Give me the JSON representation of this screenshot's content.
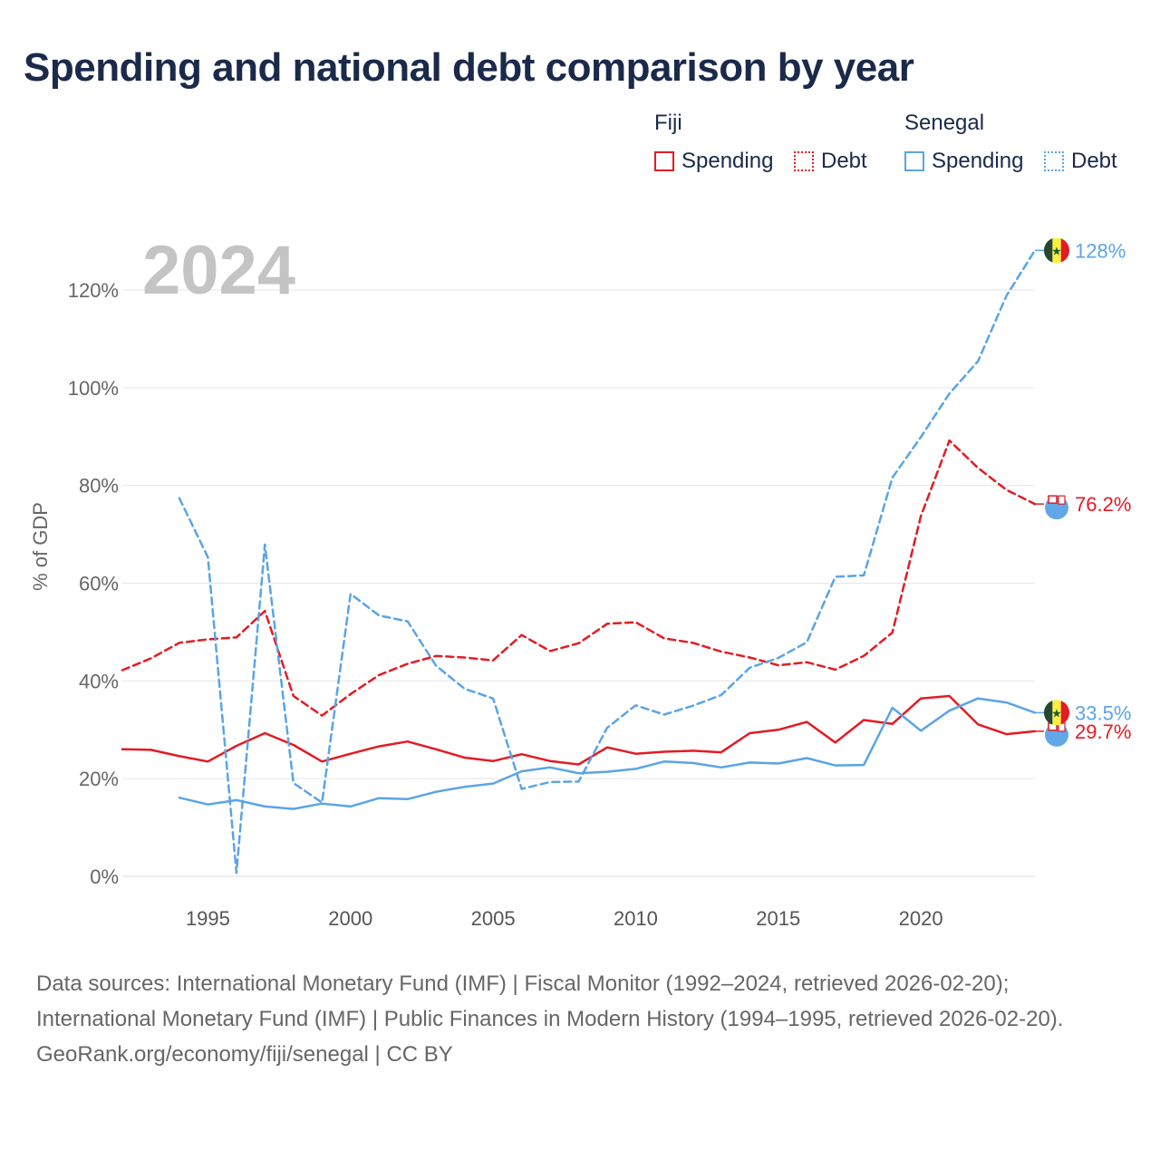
{
  "title": "Spending and national debt comparison by year",
  "legend": {
    "groups": [
      {
        "country": "Fiji",
        "spending_label": "Spending",
        "debt_label": "Debt",
        "color": "#e31b23"
      },
      {
        "country": "Senegal",
        "spending_label": "Spending",
        "debt_label": "Debt",
        "color": "#5aa4e6"
      }
    ]
  },
  "footer": {
    "sources": "Data sources: International Monetary Fund (IMF) | Fiscal Monitor (1992–2024, retrieved 2026-02-20); International Monetary Fund (IMF) | Public Finances in Modern History (1994–1995, retrieved 2026-02-20).",
    "credit": "GeoRank.org/economy/fiji/senegal | CC BY"
  },
  "chart_data": {
    "type": "line",
    "title": "Spending and national debt comparison by year",
    "year_watermark": "2024",
    "ylabel": "% of GDP",
    "xlabel": "",
    "xlim": [
      1992,
      2024
    ],
    "ylim": [
      0,
      130
    ],
    "x_ticks": [
      1995,
      2000,
      2005,
      2010,
      2015,
      2020
    ],
    "y_ticks": [
      0,
      20,
      40,
      60,
      80,
      100,
      120
    ],
    "y_tick_labels": [
      "0%",
      "20%",
      "40%",
      "60%",
      "80%",
      "100%",
      "120%"
    ],
    "series": [
      {
        "name": "Fiji Spending",
        "country": "Fiji",
        "kind": "spending",
        "style": "solid",
        "color": "#e31b23",
        "end_label": "29.7%",
        "x": [
          1992,
          1993,
          1994,
          1995,
          1996,
          1997,
          1998,
          1999,
          2000,
          2001,
          2002,
          2003,
          2004,
          2005,
          2006,
          2007,
          2008,
          2009,
          2010,
          2011,
          2012,
          2013,
          2014,
          2015,
          2016,
          2017,
          2018,
          2019,
          2020,
          2021,
          2022,
          2023,
          2024
        ],
        "values": [
          26.0,
          25.9,
          24.6,
          23.5,
          26.7,
          29.3,
          26.9,
          23.5,
          25.1,
          26.6,
          27.6,
          26.0,
          24.3,
          23.6,
          25.0,
          23.6,
          22.9,
          26.4,
          25.1,
          25.5,
          25.7,
          25.4,
          29.3,
          30.0,
          31.6,
          27.4,
          32.0,
          31.2,
          36.4,
          36.9,
          31.1,
          29.1,
          29.7
        ]
      },
      {
        "name": "Fiji Debt",
        "country": "Fiji",
        "kind": "debt",
        "style": "dashed",
        "color": "#e31b23",
        "end_label": "76.2%",
        "x": [
          1992,
          1993,
          1994,
          1995,
          1996,
          1997,
          1998,
          1999,
          2000,
          2001,
          2002,
          2003,
          2004,
          2005,
          2006,
          2007,
          2008,
          2009,
          2010,
          2011,
          2012,
          2013,
          2014,
          2015,
          2016,
          2017,
          2018,
          2019,
          2020,
          2021,
          2022,
          2023,
          2024
        ],
        "values": [
          42.2,
          44.6,
          47.8,
          48.5,
          48.9,
          54.3,
          36.9,
          32.9,
          37.3,
          41.2,
          43.5,
          45.1,
          44.8,
          44.2,
          49.4,
          46.1,
          47.7,
          51.7,
          52.0,
          48.7,
          47.8,
          46.0,
          44.8,
          43.2,
          43.8,
          42.3,
          45.1,
          49.9,
          73.7,
          89.2,
          83.6,
          79.1,
          76.2
        ]
      },
      {
        "name": "Senegal Spending",
        "country": "Senegal",
        "kind": "spending",
        "style": "solid",
        "color": "#5aa4e6",
        "end_label": "33.5%",
        "x": [
          1994,
          1995,
          1996,
          1997,
          1998,
          1999,
          2000,
          2001,
          2002,
          2003,
          2004,
          2005,
          2006,
          2007,
          2008,
          2009,
          2010,
          2011,
          2012,
          2013,
          2014,
          2015,
          2016,
          2017,
          2018,
          2019,
          2020,
          2021,
          2022,
          2023,
          2024
        ],
        "values": [
          16.1,
          14.7,
          15.6,
          14.3,
          13.8,
          14.9,
          14.3,
          16.0,
          15.8,
          17.3,
          18.3,
          19.0,
          21.5,
          22.3,
          21.1,
          21.4,
          22.0,
          23.5,
          23.2,
          22.3,
          23.3,
          23.1,
          24.2,
          22.7,
          22.8,
          34.5,
          29.8,
          33.9,
          36.4,
          35.6,
          33.5
        ]
      },
      {
        "name": "Senegal Debt",
        "country": "Senegal",
        "kind": "debt",
        "style": "dashed",
        "color": "#5aa4e6",
        "end_label": "128%",
        "x": [
          1994,
          1995,
          1996,
          1997,
          1998,
          1999,
          2000,
          2001,
          2002,
          2003,
          2004,
          2005,
          2006,
          2007,
          2008,
          2009,
          2010,
          2011,
          2012,
          2013,
          2014,
          2015,
          2016,
          2017,
          2018,
          2019,
          2020,
          2021,
          2022,
          2023,
          2024
        ],
        "values": [
          77.4,
          65.3,
          0.7,
          67.9,
          19.1,
          15.1,
          57.8,
          53.4,
          52.2,
          43.1,
          38.4,
          36.4,
          17.9,
          19.3,
          19.4,
          30.4,
          35.0,
          33.1,
          34.9,
          37.1,
          42.7,
          44.7,
          47.9,
          61.3,
          61.6,
          81.6,
          89.9,
          98.8,
          105.4,
          118.8,
          128.1
        ]
      }
    ]
  }
}
